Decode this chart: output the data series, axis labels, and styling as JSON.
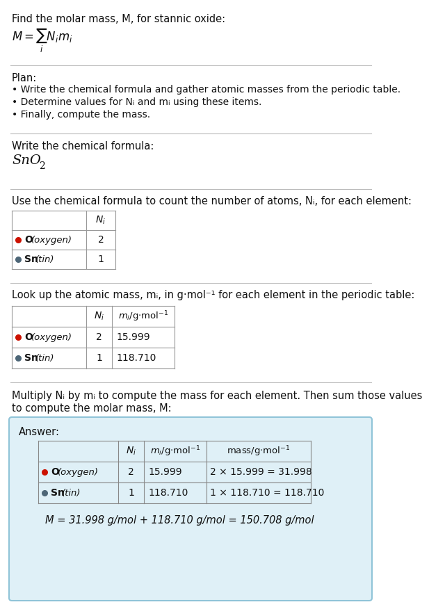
{
  "bg_color": "#ffffff",
  "answer_bg": "#dff0f7",
  "answer_border": "#90c4d8",
  "sep_color": "#bbbbbb",
  "table_border": "#999999",
  "text_dark": "#111111",
  "text_gray": "#666666",
  "O_color": "#cc1100",
  "Sn_color": "#4d6677",
  "title": "Find the molar mass, M, for stannic oxide:",
  "plan_header": "Plan:",
  "plan_bullets": [
    "• Write the chemical formula and gather atomic masses from the periodic table.",
    "• Determine values for Nᵢ and mᵢ using these items.",
    "• Finally, compute the mass."
  ],
  "sec3_label": "Write the chemical formula:",
  "sec4_label": "Use the chemical formula to count the number of atoms, Nᵢ, for each element:",
  "sec5_label": "Look up the atomic mass, mᵢ, in g·mol⁻¹ for each element in the periodic table:",
  "sec6_label1": "Multiply Nᵢ by mᵢ to compute the mass for each element. Then sum those values",
  "sec6_label2": "to compute the molar mass, M:",
  "answer_label": "Answer:",
  "final_eq": "M = 31.998 g/mol + 118.710 g/mol = 150.708 g/mol",
  "elements": [
    {
      "symbol": "O",
      "name": "oxygen",
      "color": "#cc1100",
      "Ni": "2",
      "mi": "15.999",
      "mass_eq": "2 × 15.999 = 31.998"
    },
    {
      "symbol": "Sn",
      "name": "tin",
      "color": "#4d6677",
      "Ni": "1",
      "mi": "118.710",
      "mass_eq": "1 × 118.710 = 118.710"
    }
  ]
}
